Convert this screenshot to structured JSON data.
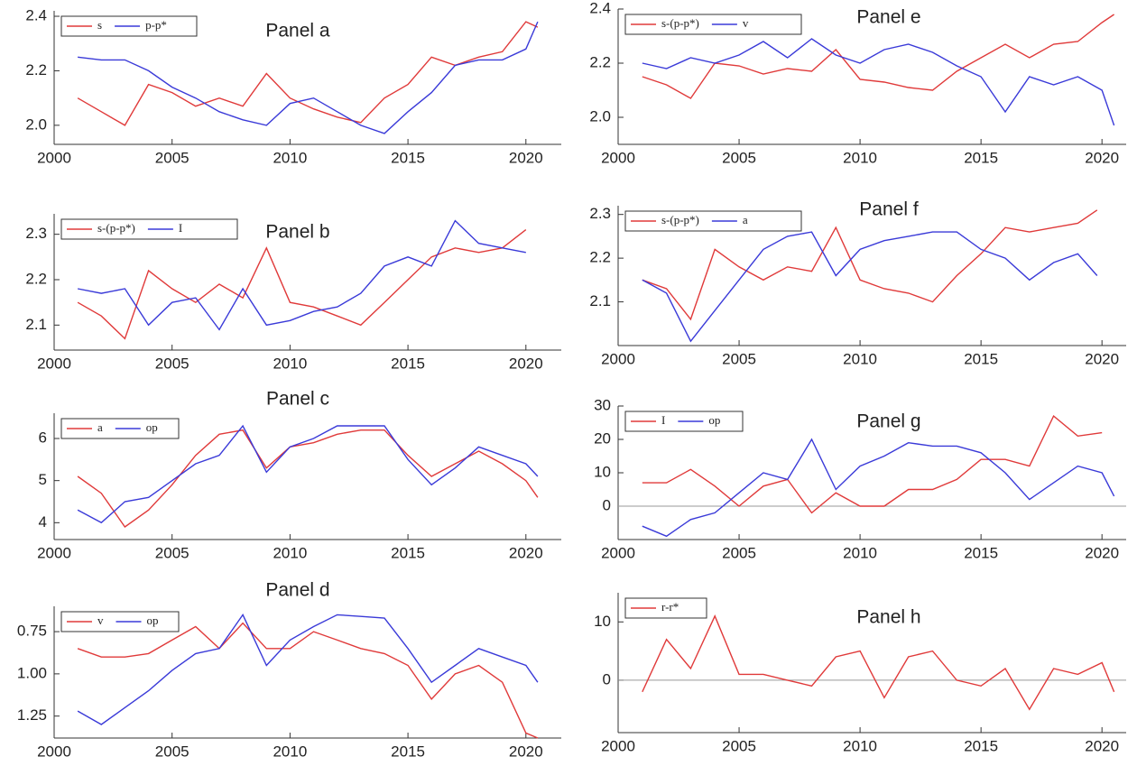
{
  "chart_data": [
    {
      "type": "line",
      "title": "Panel a",
      "x": [
        2001,
        2002,
        2003,
        2004,
        2005,
        2006,
        2007,
        2008,
        2009,
        2010,
        2011,
        2012,
        2013,
        2014,
        2015,
        2016,
        2017,
        2018,
        2019,
        2020,
        2020.5
      ],
      "series": [
        {
          "name": "s",
          "color": "#e03a3a",
          "values": [
            2.1,
            2.05,
            2.0,
            2.15,
            2.12,
            2.07,
            2.1,
            2.07,
            2.19,
            2.1,
            2.06,
            2.03,
            2.01,
            2.1,
            2.15,
            2.25,
            2.22,
            2.25,
            2.27,
            2.38,
            2.36
          ]
        },
        {
          "name": "p-p*",
          "color": "#3a3ad8",
          "values": [
            2.25,
            2.24,
            2.24,
            2.2,
            2.14,
            2.1,
            2.05,
            2.02,
            2.0,
            2.08,
            2.1,
            2.05,
            2.0,
            1.97,
            2.05,
            2.12,
            2.22,
            2.24,
            2.24,
            2.28,
            2.38
          ]
        }
      ],
      "xlim": [
        2000,
        2021.5
      ],
      "xticks": [
        2000,
        2005,
        2010,
        2015,
        2020
      ],
      "ylim": [
        1.93,
        2.42
      ],
      "yticks": [
        {
          "value": 2.0,
          "label": "2.0"
        },
        2.2,
        2.4
      ],
      "legend": "top-left"
    },
    {
      "type": "line",
      "title": "Panel b",
      "x": [
        2001,
        2002,
        2003,
        2004,
        2005,
        2006,
        2007,
        2008,
        2009,
        2010,
        2011,
        2012,
        2013,
        2014,
        2015,
        2016,
        2017,
        2018,
        2019,
        2020
      ],
      "series": [
        {
          "name": "s-(p-p*)",
          "color": "#e03a3a",
          "values": [
            2.15,
            2.12,
            2.07,
            2.22,
            2.18,
            2.15,
            2.19,
            2.16,
            2.27,
            2.15,
            2.14,
            2.12,
            2.1,
            2.15,
            2.2,
            2.25,
            2.27,
            2.26,
            2.27,
            2.31
          ]
        },
        {
          "name": "I",
          "color": "#3a3ad8",
          "values": [
            2.18,
            2.17,
            2.18,
            2.1,
            2.15,
            2.16,
            2.09,
            2.18,
            2.1,
            2.11,
            2.13,
            2.14,
            2.17,
            2.23,
            2.25,
            2.23,
            2.33,
            2.28,
            2.27,
            2.26
          ]
        }
      ],
      "xlim": [
        2000,
        2021.5
      ],
      "xticks": [
        2000,
        2005,
        2010,
        2015,
        2020
      ],
      "ylim": [
        2.045,
        2.345
      ],
      "yticks": [
        2.1,
        2.2,
        2.3
      ],
      "legend": "top-left"
    },
    {
      "type": "line",
      "title": "Panel c",
      "x": [
        2001,
        2002,
        2003,
        2004,
        2005,
        2006,
        2007,
        2008,
        2009,
        2010,
        2011,
        2012,
        2013,
        2014,
        2015,
        2016,
        2017,
        2018,
        2019,
        2020,
        2020.5
      ],
      "series": [
        {
          "name": "a",
          "color": "#e03a3a",
          "values": [
            5.1,
            4.7,
            3.9,
            4.3,
            4.9,
            5.6,
            6.1,
            6.2,
            5.3,
            5.8,
            5.9,
            6.1,
            6.2,
            6.2,
            5.6,
            5.1,
            5.4,
            5.7,
            5.4,
            5.0,
            4.6
          ]
        },
        {
          "name": "op",
          "color": "#3a3ad8",
          "values": [
            4.3,
            4.0,
            4.5,
            4.6,
            5.0,
            5.4,
            5.6,
            6.3,
            5.2,
            5.8,
            6.0,
            6.3,
            6.3,
            6.3,
            5.5,
            4.9,
            5.3,
            5.8,
            5.6,
            5.4,
            5.1
          ]
        }
      ],
      "xlim": [
        2000,
        2021.5
      ],
      "xticks": [
        2000,
        2005,
        2010,
        2015,
        2020
      ],
      "ylim": [
        3.6,
        6.6
      ],
      "yticks": [
        4,
        5,
        6
      ],
      "legend": "top-left"
    },
    {
      "type": "line",
      "title": "Panel d",
      "x": [
        2001,
        2002,
        2003,
        2004,
        2005,
        2006,
        2007,
        2008,
        2009,
        2010,
        2011,
        2012,
        2013,
        2014,
        2015,
        2016,
        2017,
        2018,
        2019,
        2020,
        2020.5
      ],
      "series": [
        {
          "name": "v",
          "color": "#e03a3a",
          "values": [
            0.85,
            0.9,
            0.9,
            0.88,
            0.8,
            0.72,
            0.85,
            0.7,
            0.85,
            0.85,
            0.75,
            0.8,
            0.85,
            0.88,
            0.95,
            1.15,
            1.0,
            0.95,
            1.05,
            1.35,
            1.38
          ]
        },
        {
          "name": "op",
          "color": "#3a3ad8",
          "values": [
            1.22,
            1.3,
            1.2,
            1.1,
            0.98,
            0.88,
            0.85,
            0.65,
            0.95,
            0.8,
            0.72,
            0.65,
            0.66,
            0.67,
            0.85,
            1.05,
            0.95,
            0.85,
            0.9,
            0.95,
            1.05
          ]
        }
      ],
      "xlim": [
        2000,
        2021.5
      ],
      "xticks": [
        2000,
        2005,
        2010,
        2015,
        2020
      ],
      "ylim": [
        1.38,
        0.6
      ],
      "y_inverted": true,
      "yticks": [
        0.75,
        {
          "value": 1.0,
          "label": "1.00"
        },
        1.25
      ],
      "legend": "top-left"
    },
    {
      "type": "line",
      "title": "Panel e",
      "x": [
        2001,
        2002,
        2003,
        2004,
        2005,
        2006,
        2007,
        2008,
        2009,
        2010,
        2011,
        2012,
        2013,
        2014,
        2015,
        2016,
        2017,
        2018,
        2019,
        2020,
        2020.5
      ],
      "series": [
        {
          "name": "s-(p-p*)",
          "color": "#e03a3a",
          "values": [
            2.15,
            2.12,
            2.07,
            2.2,
            2.19,
            2.16,
            2.18,
            2.17,
            2.25,
            2.14,
            2.13,
            2.11,
            2.1,
            2.17,
            2.22,
            2.27,
            2.22,
            2.27,
            2.28,
            2.35,
            2.38
          ]
        },
        {
          "name": "v",
          "color": "#3a3ad8",
          "values": [
            2.2,
            2.18,
            2.22,
            2.2,
            2.23,
            2.28,
            2.22,
            2.29,
            2.23,
            2.2,
            2.25,
            2.27,
            2.24,
            2.19,
            2.15,
            2.02,
            2.15,
            2.12,
            2.15,
            2.1,
            1.97
          ]
        }
      ],
      "xlim": [
        2000,
        2021
      ],
      "xticks": [
        2000,
        2005,
        2010,
        2015,
        2020
      ],
      "ylim": [
        1.9,
        2.4
      ],
      "yticks": [
        {
          "value": 2.0,
          "label": "2.0"
        },
        2.2,
        2.4
      ],
      "legend": "top-left"
    },
    {
      "type": "line",
      "title": "Panel f",
      "x": [
        2001,
        2002,
        2003,
        2004,
        2005,
        2006,
        2007,
        2008,
        2009,
        2010,
        2011,
        2012,
        2013,
        2014,
        2015,
        2016,
        2017,
        2018,
        2019,
        2019.8
      ],
      "series": [
        {
          "name": "s-(p-p*)",
          "color": "#e03a3a",
          "values": [
            2.15,
            2.13,
            2.06,
            2.22,
            2.18,
            2.15,
            2.18,
            2.17,
            2.27,
            2.15,
            2.13,
            2.12,
            2.1,
            2.16,
            2.21,
            2.27,
            2.26,
            2.27,
            2.28,
            2.31
          ]
        },
        {
          "name": "a",
          "color": "#3a3ad8",
          "values": [
            2.15,
            2.12,
            2.01,
            2.08,
            2.15,
            2.22,
            2.25,
            2.26,
            2.16,
            2.22,
            2.24,
            2.25,
            2.26,
            2.26,
            2.22,
            2.2,
            2.15,
            2.19,
            2.21,
            2.16
          ]
        }
      ],
      "xlim": [
        2000,
        2021
      ],
      "xticks": [
        2000,
        2005,
        2010,
        2015,
        2020
      ],
      "ylim": [
        2.0,
        2.32
      ],
      "yticks": [
        2.1,
        2.2,
        2.3
      ],
      "legend": "top-left"
    },
    {
      "type": "line",
      "title": "Panel g",
      "x": [
        2001,
        2002,
        2003,
        2004,
        2005,
        2006,
        2007,
        2008,
        2009,
        2010,
        2011,
        2012,
        2013,
        2014,
        2015,
        2016,
        2017,
        2018,
        2019,
        2020,
        2020.5
      ],
      "series": [
        {
          "name": "I",
          "color": "#e03a3a",
          "values": [
            7,
            7,
            11,
            6,
            0,
            6,
            8,
            -2,
            4,
            0,
            0,
            5,
            5,
            8,
            14,
            14,
            12,
            27,
            21,
            22,
            null
          ]
        },
        {
          "name": "op",
          "color": "#3a3ad8",
          "values": [
            -6,
            -9,
            -4,
            -2,
            4,
            10,
            8,
            20,
            5,
            12,
            15,
            19,
            18,
            18,
            16,
            10,
            2,
            7,
            12,
            10,
            3
          ]
        }
      ],
      "xlim": [
        2000,
        2021
      ],
      "xticks": [
        2000,
        2005,
        2010,
        2015,
        2020
      ],
      "ylim": [
        -10,
        30
      ],
      "yticks": [
        0,
        10,
        20,
        30
      ],
      "zero_line": true,
      "legend": "top-left"
    },
    {
      "type": "line",
      "title": "Panel h",
      "x": [
        2001,
        2002,
        2003,
        2004,
        2005,
        2006,
        2007,
        2008,
        2009,
        2010,
        2011,
        2012,
        2013,
        2014,
        2015,
        2016,
        2017,
        2018,
        2019,
        2020,
        2020.5
      ],
      "series": [
        {
          "name": "r-r*",
          "color": "#e03a3a",
          "values": [
            -2,
            7,
            2,
            11,
            1,
            1,
            0,
            -1,
            4,
            5,
            -3,
            4,
            5,
            0,
            -1,
            2,
            -5,
            2,
            1,
            3,
            -2
          ]
        }
      ],
      "xlim": [
        2000,
        2021
      ],
      "xticks": [
        2000,
        2005,
        2010,
        2015,
        2020
      ],
      "ylim": [
        -9,
        15
      ],
      "yticks": [
        0,
        10
      ],
      "zero_line": true,
      "legend": "top-left"
    }
  ]
}
